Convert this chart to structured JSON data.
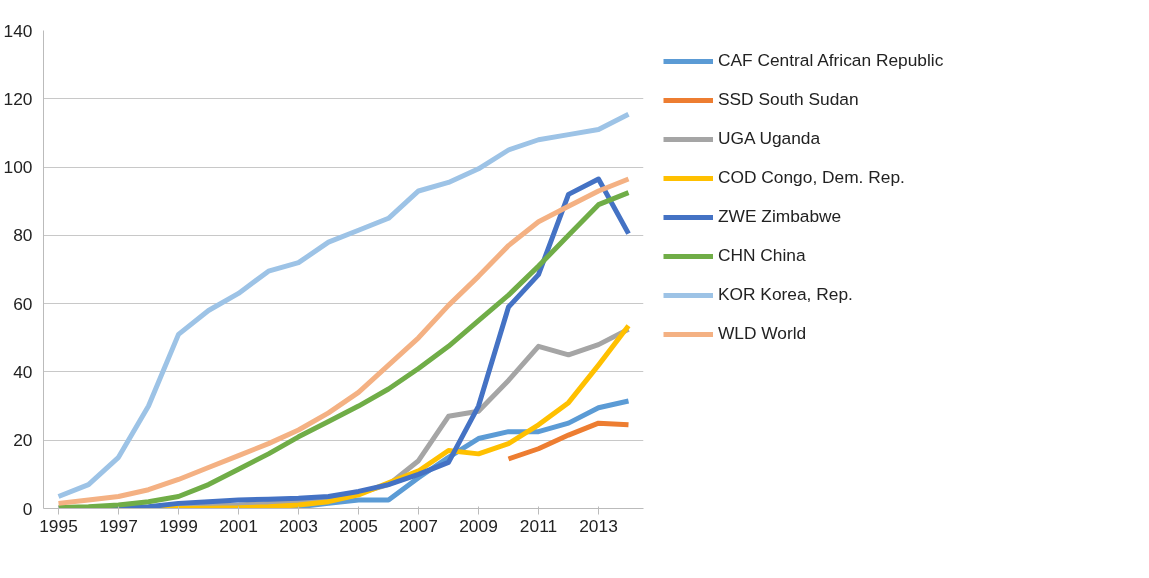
{
  "chart_data": {
    "type": "line",
    "x": [
      1995,
      1996,
      1997,
      1998,
      1999,
      2000,
      2001,
      2002,
      2003,
      2004,
      2005,
      2006,
      2007,
      2008,
      2009,
      2010,
      2011,
      2012,
      2013,
      2014
    ],
    "xlim": [
      1994.5,
      2014.5
    ],
    "xticks": [
      1995,
      1997,
      1999,
      2001,
      2003,
      2005,
      2007,
      2009,
      2011,
      2013
    ],
    "ylim": [
      0,
      140
    ],
    "yticks": [
      0,
      20,
      40,
      60,
      80,
      100,
      120,
      140
    ],
    "grid": "y",
    "legend": "right",
    "marker": "none",
    "line_style": "solid",
    "series": [
      {
        "name": "CAF Central African Republic",
        "color": "#5b9bd5",
        "values": [
          0,
          0,
          0,
          0,
          0,
          0,
          0,
          0.1,
          0.5,
          1.5,
          2.5,
          2.5,
          9,
          15,
          20.5,
          22.5,
          22.5,
          25,
          29.5,
          31.5
        ]
      },
      {
        "name": "SSD South Sudan",
        "color": "#ed7d31",
        "values": [
          null,
          null,
          null,
          null,
          null,
          null,
          null,
          null,
          null,
          null,
          null,
          null,
          null,
          null,
          null,
          14.5,
          17.5,
          21.5,
          25,
          24.5
        ]
      },
      {
        "name": "UGA Uganda",
        "color": "#a5a5a5",
        "values": [
          0,
          0,
          0,
          0.1,
          0.5,
          0.8,
          1,
          1.5,
          2,
          3,
          4.5,
          7,
          14,
          27,
          28.5,
          37.5,
          47.5,
          45,
          48,
          52.5
        ]
      },
      {
        "name": "COD Congo, Dem. Rep.",
        "color": "#ffc000",
        "values": [
          null,
          null,
          0,
          0,
          0,
          0.1,
          0.2,
          0.5,
          1,
          2,
          4,
          7.5,
          11,
          17,
          16,
          19,
          24.5,
          31,
          42,
          53.5
        ]
      },
      {
        "name": "ZWE Zimbabwe",
        "color": "#4472c4",
        "values": [
          0,
          0,
          0,
          0.5,
          1.5,
          2,
          2.5,
          2.7,
          3,
          3.5,
          5,
          7,
          10,
          13.5,
          30,
          59,
          68.5,
          92,
          96.5,
          80.5
        ]
      },
      {
        "name": "CHN China",
        "color": "#70ad47",
        "values": [
          0.3,
          0.5,
          1,
          2,
          3.5,
          7,
          11.5,
          16,
          21,
          25.5,
          30,
          35,
          41,
          47.5,
          55,
          62.5,
          71,
          80,
          89,
          92.5
        ]
      },
      {
        "name": "KOR Korea, Rep.",
        "color": "#9dc3e6",
        "values": [
          3.5,
          7,
          15,
          30,
          51,
          58,
          63,
          69.5,
          72,
          78,
          81.5,
          85,
          93,
          95.5,
          99.5,
          105,
          108,
          109.5,
          111,
          115.5
        ]
      },
      {
        "name": "WLD World",
        "color": "#f4b183",
        "values": [
          1.5,
          2.5,
          3.5,
          5.5,
          8.5,
          12,
          15.5,
          19,
          23,
          28,
          34,
          42,
          50,
          59.5,
          68,
          77,
          84,
          88.5,
          93,
          96.5
        ]
      }
    ]
  }
}
